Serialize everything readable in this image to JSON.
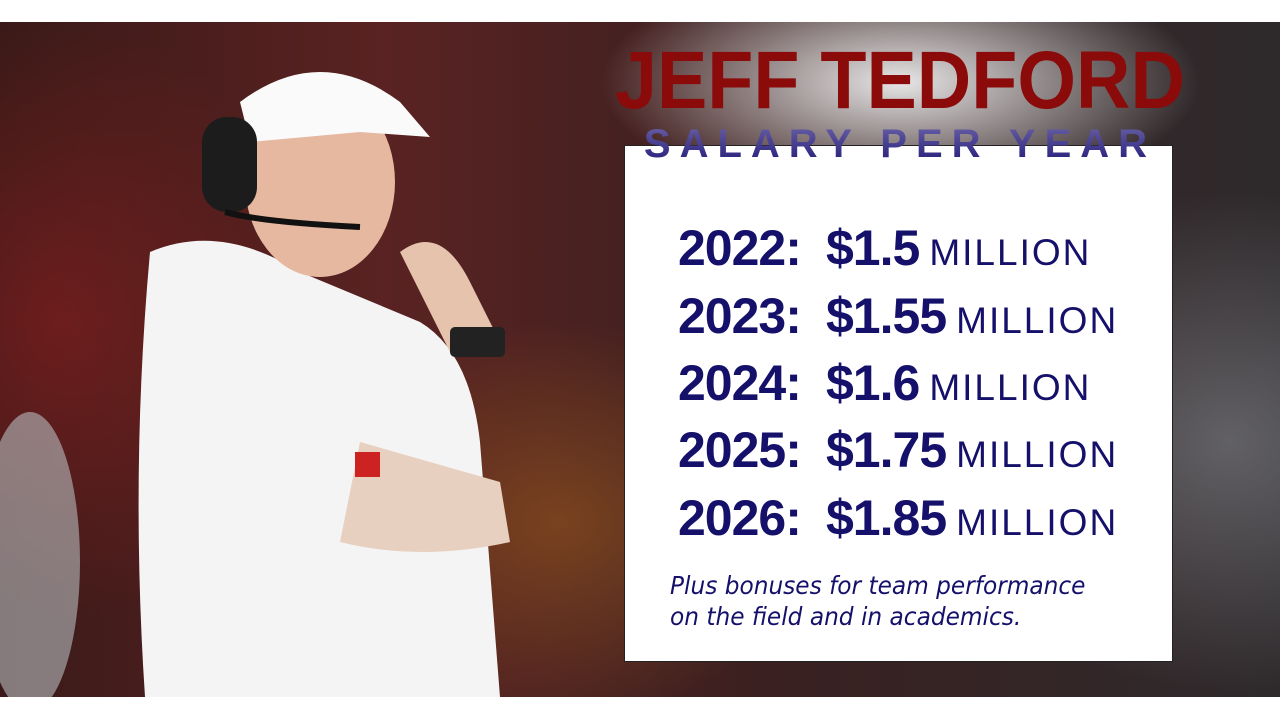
{
  "title": "JEFF TEDFORD",
  "subtitle": "SALARY PER YEAR",
  "salaries": [
    {
      "year": "2022:",
      "amount": "$1.5",
      "unit": "MILLION"
    },
    {
      "year": "2023:",
      "amount": "$1.55",
      "unit": "MILLION"
    },
    {
      "year": "2024:",
      "amount": "$1.6",
      "unit": "MILLION"
    },
    {
      "year": "2025:",
      "amount": "$1.75",
      "unit": "MILLION"
    },
    {
      "year": "2026:",
      "amount": "$1.85",
      "unit": "MILLION"
    }
  ],
  "note_line1": "Plus bonuses for team performance",
  "note_line2": "on the field and in academics.",
  "colors": {
    "title": "#8b0a0a",
    "text": "#15106a"
  }
}
